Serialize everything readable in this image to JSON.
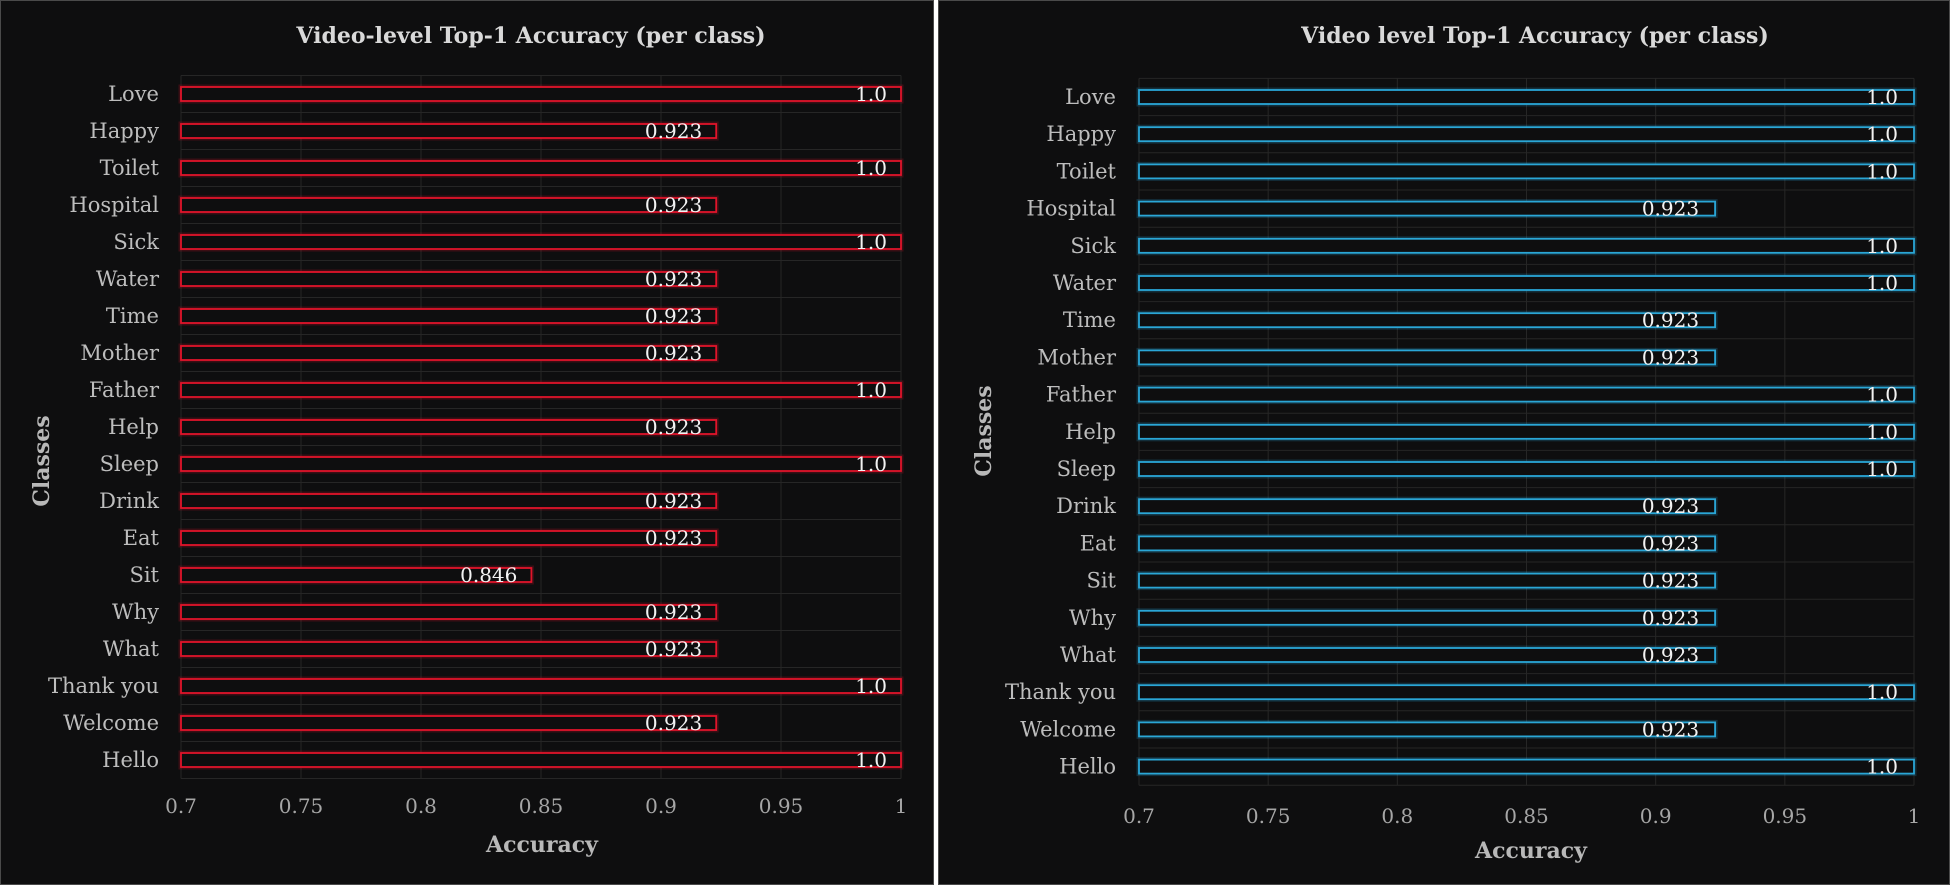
{
  "chart_data": [
    {
      "type": "bar",
      "orientation": "horizontal",
      "title": "Video-level Top-1 Accuracy (per class)",
      "xlabel": "Accuracy",
      "ylabel": "Classes",
      "xlim": [
        0.7,
        1
      ],
      "xticks": [
        0.7,
        0.75,
        0.8,
        0.85,
        0.9,
        0.95,
        1
      ],
      "xtick_labels": [
        "0.7",
        "0.75",
        "0.8",
        "0.85",
        "0.9",
        "0.95",
        "1"
      ],
      "grid": true,
      "bar_color": "#e0142a",
      "categories": [
        "Love",
        "Happy",
        "Toilet",
        "Hospital",
        "Sick",
        "Water",
        "Time",
        "Mother",
        "Father",
        "Help",
        "Sleep",
        "Drink",
        "Eat",
        "Sit",
        "Why",
        "What",
        "Thank you",
        "Welcome",
        "Hello"
      ],
      "values": [
        1.0,
        0.923,
        1.0,
        0.923,
        1.0,
        0.923,
        0.923,
        0.923,
        1.0,
        0.923,
        1.0,
        0.923,
        0.923,
        0.846,
        0.923,
        0.923,
        1.0,
        0.923,
        1.0
      ],
      "value_labels": [
        "1.0",
        "0.923",
        "1.0",
        "0.923",
        "1.0",
        "0.923",
        "0.923",
        "0.923",
        "1.0",
        "0.923",
        "1.0",
        "0.923",
        "0.923",
        "0.846",
        "0.923",
        "0.923",
        "1.0",
        "0.923",
        "1.0"
      ]
    },
    {
      "type": "bar",
      "orientation": "horizontal",
      "title": "Video level Top-1 Accuracy (per class)",
      "xlabel": "Accuracy",
      "ylabel": "Classes",
      "xlim": [
        0.7,
        1
      ],
      "xticks": [
        0.7,
        0.75,
        0.8,
        0.85,
        0.9,
        0.95,
        1
      ],
      "xtick_labels": [
        "0.7",
        "0.75",
        "0.8",
        "0.85",
        "0.9",
        "0.95",
        "1"
      ],
      "grid": true,
      "bar_color": "#2aa6d6",
      "categories": [
        "Love",
        "Happy",
        "Toilet",
        "Hospital",
        "Sick",
        "Water",
        "Time",
        "Mother",
        "Father",
        "Help",
        "Sleep",
        "Drink",
        "Eat",
        "Sit",
        "Why",
        "What",
        "Thank you",
        "Welcome",
        "Hello"
      ],
      "values": [
        1.0,
        1.0,
        1.0,
        0.923,
        1.0,
        1.0,
        0.923,
        0.923,
        1.0,
        1.0,
        1.0,
        0.923,
        0.923,
        0.923,
        0.923,
        0.923,
        1.0,
        0.923,
        1.0
      ],
      "value_labels": [
        "1.0",
        "1.0",
        "1.0",
        "0.923",
        "1.0",
        "1.0",
        "0.923",
        "0.923",
        "1.0",
        "1.0",
        "1.0",
        "0.923",
        "0.923",
        "0.923",
        "0.923",
        "0.923",
        "1.0",
        "0.923",
        "1.0"
      ]
    }
  ]
}
